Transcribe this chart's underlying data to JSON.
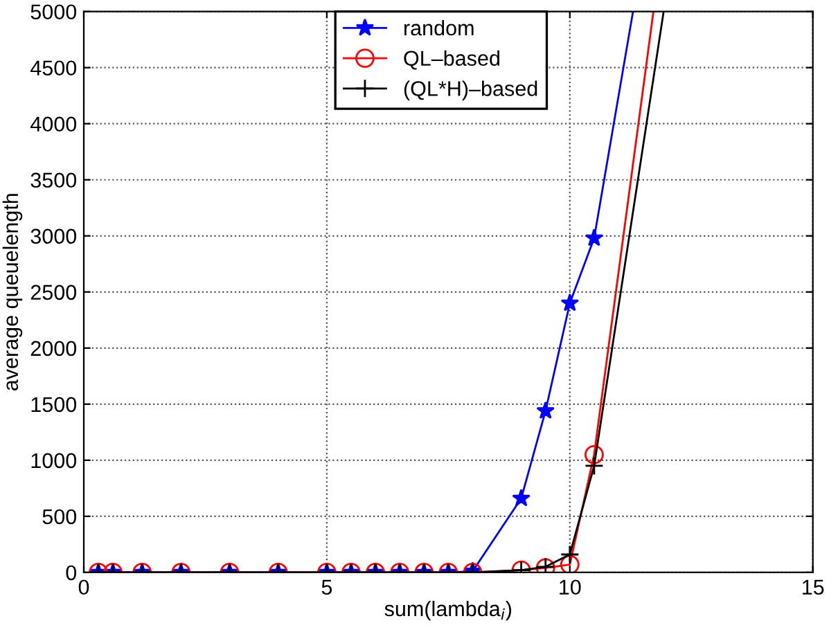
{
  "chart_data": {
    "type": "line",
    "xlabel": "sum(lambda$_{i}$)",
    "ylabel": "average queuelength",
    "xlim": [
      0,
      15
    ],
    "xticks": [
      0,
      5,
      10,
      15
    ],
    "ylim": [
      0,
      5000
    ],
    "yticks": [
      0,
      500,
      1000,
      1500,
      2000,
      2500,
      3000,
      3500,
      4000,
      4500,
      5000
    ],
    "grid": true,
    "legend": "top",
    "line_style": "solid",
    "series": [
      {
        "name": "random",
        "color": "#0000ff",
        "marker": "star",
        "x": [
          0.3,
          0.6,
          1.2,
          2,
          3,
          4,
          5,
          5.5,
          6,
          6.5,
          7,
          7.5,
          8,
          9,
          9.5,
          10,
          10.5,
          11.3
        ],
        "values": [
          0,
          0,
          0,
          0,
          0,
          0,
          0,
          0,
          0,
          0,
          0,
          0,
          10,
          660,
          1440,
          2400,
          2980,
          5000
        ]
      },
      {
        "name": "QL‒based",
        "color": "#ff0000",
        "marker": "circle",
        "x": [
          0.3,
          0.6,
          1.2,
          2,
          3,
          4,
          5,
          5.5,
          6,
          6.5,
          7,
          7.5,
          8,
          9,
          9.5,
          10,
          10.5,
          11.72
        ],
        "values": [
          0,
          0,
          0,
          0,
          0,
          0,
          0,
          0,
          0,
          0,
          0,
          0,
          0,
          20,
          40,
          70,
          1050,
          5000
        ]
      },
      {
        "name": "(QL*H)‒based",
        "color": "#000000",
        "marker": "cross",
        "x": [
          0.3,
          0.6,
          1.2,
          2,
          3,
          4,
          5,
          5.5,
          6,
          6.5,
          7,
          7.5,
          8,
          9,
          9.5,
          10,
          10.5,
          11.93
        ],
        "values": [
          0,
          0,
          0,
          0,
          0,
          0,
          0,
          0,
          0,
          0,
          0,
          0,
          0,
          20,
          50,
          160,
          950,
          5000
        ]
      }
    ]
  }
}
